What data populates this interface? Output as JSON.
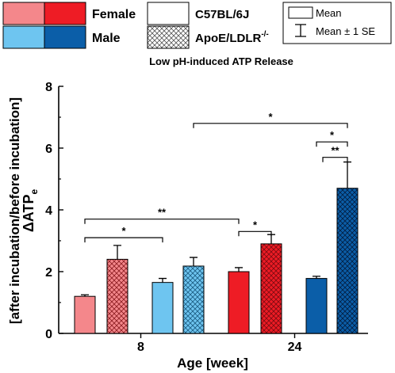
{
  "chart_data": {
    "type": "bar",
    "title": "Low pH-induced ATP Release",
    "xlabel": "Age [week]",
    "ylabel_main": "ΔATP",
    "ylabel_sub": "e",
    "ylabel_line2": "[after incubation/before incubation]",
    "ylim": [
      0,
      8
    ],
    "yticks": [
      "0",
      "2",
      "4",
      "6",
      "8"
    ],
    "categories": [
      "8",
      "24"
    ],
    "legend": {
      "sex": [
        {
          "label": "Female",
          "colors": [
            "#f4878b",
            "#ee1c25"
          ]
        },
        {
          "label": "Male",
          "colors": [
            "#6ec5f0",
            "#0b5ea8"
          ]
        }
      ],
      "strain": [
        {
          "label": "C57BL/6J",
          "pattern": "solid"
        },
        {
          "label": "ApoE/LDLR",
          "superscript": "-/-",
          "pattern": "crosshatch"
        }
      ],
      "stats": [
        {
          "label": "Mean",
          "symbol": "box"
        },
        {
          "label": "Mean ± 1 SE",
          "symbol": "errorbar"
        }
      ]
    },
    "series": [
      {
        "name": "Female C57BL/6J",
        "values": [
          1.2,
          2.0
        ],
        "se": [
          0.05,
          0.13
        ],
        "color": "#f4878b",
        "color24": "#ee1c25",
        "hatch": false
      },
      {
        "name": "Female ApoE/LDLR-/-",
        "values": [
          2.4,
          2.9
        ],
        "se": [
          0.45,
          0.3
        ],
        "color": "#f4878b",
        "color24": "#ee1c25",
        "hatch": true
      },
      {
        "name": "Male C57BL/6J",
        "values": [
          1.65,
          1.78
        ],
        "se": [
          0.13,
          0.07
        ],
        "color": "#6ec5f0",
        "color24": "#0b5ea8",
        "hatch": false
      },
      {
        "name": "Male ApoE/LDLR-/-",
        "values": [
          2.18,
          4.7
        ],
        "se": [
          0.28,
          0.85
        ],
        "color": "#6ec5f0",
        "color24": "#0b5ea8",
        "hatch": true
      }
    ],
    "significance": [
      {
        "label": "*",
        "from": "8-female-c57",
        "to": "8-male-c57",
        "y": 3.1
      },
      {
        "label": "**",
        "from": "8-female-c57",
        "to": "24-female-c57",
        "y": 3.7
      },
      {
        "label": "*",
        "from": "24-female-c57",
        "to": "24-female-apoe",
        "y": 3.3
      },
      {
        "label": "*",
        "from": "8-male-apoe",
        "to": "24-male-apoe",
        "y": 6.8
      },
      {
        "label": "*",
        "from": "24-male-c57",
        "to": "24-male-apoe",
        "y": 6.2
      },
      {
        "label": "**",
        "from": "24-male-c57-mid",
        "to": "24-male-apoe",
        "y": 5.7
      }
    ],
    "grid": false
  }
}
